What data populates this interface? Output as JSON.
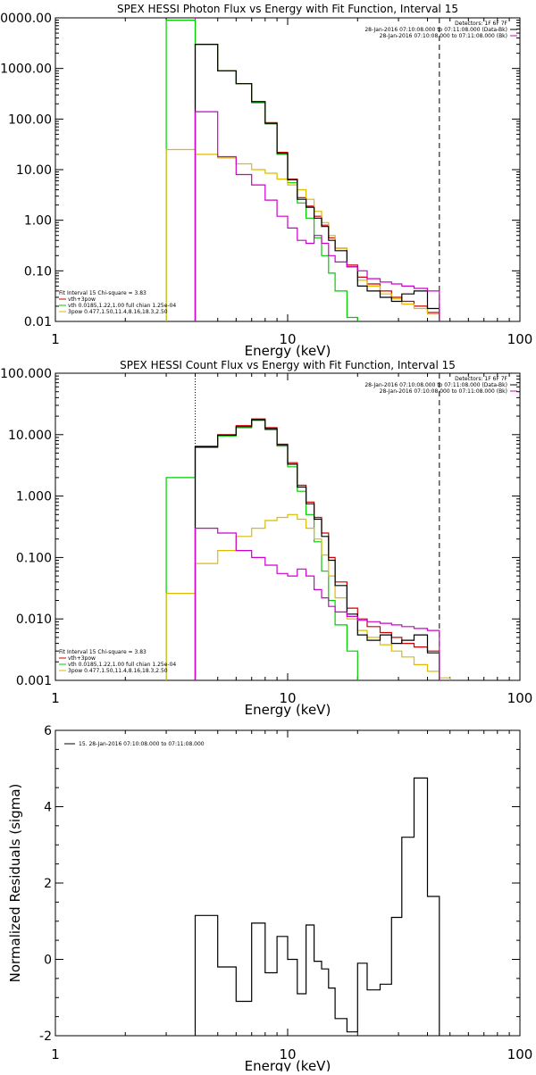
{
  "chart_data": [
    {
      "type": "line",
      "title": "SPEX HESSI Photon Flux vs Energy with Fit Function, Interval 15",
      "xlabel": "Energy (keV)",
      "ylabel": "",
      "xscale": "log",
      "yscale": "log",
      "xlim": [
        1,
        100
      ],
      "ylim": [
        0.01,
        10000
      ],
      "xticks": [
        {
          "v": 1,
          "label": "1"
        },
        {
          "v": 10,
          "label": "10"
        },
        {
          "v": 100,
          "label": "100"
        }
      ],
      "yticks": [
        {
          "v": 0.01,
          "label": "0.01"
        },
        {
          "v": 0.1,
          "label": "0.10"
        },
        {
          "v": 1,
          "label": "1.00"
        },
        {
          "v": 10,
          "label": "10.00"
        },
        {
          "v": 100,
          "label": "100.00"
        },
        {
          "v": 1000,
          "label": "1000.00"
        },
        {
          "v": 10000,
          "label": "10000.00"
        }
      ],
      "info_lines": [
        "Detectors: 1F 6F 7F",
        "28-Jan-2016 07:10:08.000 to 07:11:08.000 (Data-Bk)",
        "28-Jan-2016 07:10:08.000 to 07:11:08.000 (Bk)"
      ],
      "fit_lines": [
        {
          "text": "Fit Interval 15   Chi-square = 3.83",
          "color": "#000000"
        },
        {
          "text": "vth+3pow",
          "color": "#cc0000"
        },
        {
          "text": "vth 0.0185,1.22,1.00  full chian 1.25e-04",
          "color": "#00cc00"
        },
        {
          "text": "3pow 0.477,1.50,11.4,8.16,18.3,2.50",
          "color": "#ddbb00"
        }
      ],
      "vlines": [
        {
          "x": 4.0,
          "style": "solid",
          "color": "#cc00cc"
        },
        {
          "x": 45,
          "style": "dashed",
          "color": "#000000"
        }
      ],
      "edges": [
        3,
        4,
        5,
        6,
        7,
        8,
        9,
        10,
        11,
        12,
        13,
        14,
        15,
        16,
        18,
        20,
        22,
        25,
        28,
        31,
        35,
        40,
        45,
        50
      ],
      "series": [
        {
          "name": "vth+3pow",
          "color": "#cc0000",
          "values": [
            null,
            3000,
            900,
            500,
            220,
            85,
            22,
            6.5,
            2.8,
            1.9,
            1.2,
            0.8,
            0.45,
            0.28,
            0.13,
            0.075,
            0.055,
            0.04,
            0.03,
            0.025,
            0.02,
            0.015,
            null
          ]
        },
        {
          "color": "#00cc00",
          "values": [
            9000,
            3000,
            900,
            500,
            210,
            80,
            20,
            5.5,
            2.2,
            1.1,
            0.45,
            0.2,
            0.09,
            0.04,
            0.012,
            null,
            null,
            null,
            null,
            null,
            null,
            null,
            null
          ]
        },
        {
          "color": "#ddbb00",
          "values": [
            25,
            20,
            17,
            13,
            10,
            8.5,
            6.5,
            5,
            4,
            2.6,
            1.5,
            0.9,
            0.5,
            0.28,
            0.12,
            0.065,
            0.05,
            0.035,
            0.028,
            0.022,
            0.018,
            0.014,
            null
          ]
        },
        {
          "color": "#000000",
          "values": [
            null,
            3000,
            900,
            500,
            220,
            82,
            21,
            6.3,
            2.6,
            1.8,
            1.1,
            0.75,
            0.4,
            0.25,
            0.12,
            0.05,
            0.04,
            0.03,
            0.025,
            0.035,
            0.04,
            0.018,
            null
          ]
        },
        {
          "color": "#cc00cc",
          "values": [
            null,
            140,
            18,
            8,
            5,
            2.5,
            1.2,
            0.7,
            0.4,
            0.35,
            0.5,
            0.35,
            0.2,
            0.15,
            0.12,
            0.1,
            0.07,
            0.06,
            0.055,
            0.05,
            0.045,
            0.04,
            null
          ]
        }
      ]
    },
    {
      "type": "line",
      "title": "SPEX HESSI Count Flux vs Energy with Fit Function, Interval 15",
      "xlabel": "Energy (keV)",
      "ylabel": "",
      "xscale": "log",
      "yscale": "log",
      "xlim": [
        1,
        100
      ],
      "ylim": [
        0.001,
        100
      ],
      "xticks": [
        {
          "v": 1,
          "label": "1"
        },
        {
          "v": 10,
          "label": "10"
        },
        {
          "v": 100,
          "label": "100"
        }
      ],
      "yticks": [
        {
          "v": 0.001,
          "label": "0.001"
        },
        {
          "v": 0.01,
          "label": "0.010"
        },
        {
          "v": 0.1,
          "label": "0.100"
        },
        {
          "v": 1,
          "label": "1.000"
        },
        {
          "v": 10,
          "label": "10.000"
        },
        {
          "v": 100,
          "label": "100.000"
        }
      ],
      "info_lines": [
        "Detectors: 1F 6F 7F",
        "28-Jan-2016 07:10:08.000 to 07:11:08.000 (Data-Bk)",
        "28-Jan-2016 07:10:08.000 to 07:11:08.000 (Bk)"
      ],
      "fit_lines": [
        {
          "text": "Fit Interval 15   Chi-square = 3.83",
          "color": "#000000"
        },
        {
          "text": "vth+3pow",
          "color": "#cc0000"
        },
        {
          "text": "vth 0.0185,1.22,1.00  full chian 1.25e-04",
          "color": "#00cc00"
        },
        {
          "text": "3pow 0.477,1.50,11.4,8.16,18.3,2.50",
          "color": "#ddbb00"
        }
      ],
      "vlines": [
        {
          "x": 4.0,
          "style": "dotted",
          "color": "#000000"
        },
        {
          "x": 45,
          "style": "dashed",
          "color": "#000000"
        }
      ],
      "edges": [
        3,
        4,
        5,
        6,
        7,
        8,
        9,
        10,
        11,
        12,
        13,
        14,
        15,
        16,
        18,
        20,
        22,
        25,
        28,
        31,
        35,
        40,
        45,
        50,
        55
      ],
      "series": [
        {
          "name": "vth+3pow",
          "color": "#cc0000",
          "values": [
            null,
            6.5,
            10,
            14,
            18,
            13,
            7,
            3.5,
            1.5,
            0.8,
            0.45,
            0.25,
            0.1,
            0.04,
            0.015,
            0.01,
            0.0075,
            0.006,
            0.005,
            0.004,
            0.0035,
            0.003,
            null,
            null
          ]
        },
        {
          "color": "#00cc00",
          "values": [
            2.0,
            6.2,
            9.5,
            13,
            17,
            12,
            6.5,
            3.0,
            1.2,
            0.5,
            0.18,
            0.06,
            0.02,
            0.008,
            0.003,
            null,
            null,
            null,
            null,
            null,
            null,
            null,
            null,
            null
          ]
        },
        {
          "color": "#ddbb00",
          "values": [
            0.026,
            0.08,
            0.13,
            0.22,
            0.3,
            0.4,
            0.45,
            0.5,
            0.42,
            0.3,
            0.2,
            0.11,
            0.05,
            0.022,
            0.01,
            0.0065,
            0.005,
            0.0038,
            0.003,
            0.0024,
            0.0018,
            0.0014,
            0.0011,
            null
          ]
        },
        {
          "color": "#000000",
          "values": [
            null,
            6.3,
            9.8,
            13.5,
            17.5,
            12.5,
            6.8,
            3.3,
            1.4,
            0.75,
            0.42,
            0.22,
            0.09,
            0.035,
            0.012,
            0.0055,
            0.0045,
            0.0055,
            0.004,
            0.0045,
            0.0055,
            0.0028,
            null,
            null
          ]
        },
        {
          "color": "#cc00cc",
          "values": [
            null,
            0.3,
            0.25,
            0.13,
            0.1,
            0.075,
            0.055,
            0.05,
            0.065,
            0.05,
            0.03,
            0.022,
            0.016,
            0.013,
            0.011,
            0.0095,
            0.009,
            0.0085,
            0.008,
            0.0075,
            0.007,
            0.0065,
            null,
            null
          ]
        }
      ]
    },
    {
      "type": "line",
      "title": "",
      "xlabel": "Energy (keV)",
      "ylabel": "Normalized Residuals (sigma)",
      "xscale": "log",
      "yscale": "linear",
      "xlim": [
        1,
        100
      ],
      "ylim": [
        -2,
        6
      ],
      "xticks": [
        {
          "v": 1,
          "label": "1"
        },
        {
          "v": 10,
          "label": "10"
        },
        {
          "v": 100,
          "label": "100"
        }
      ],
      "yticks": [
        {
          "v": -2,
          "label": "-2"
        },
        {
          "v": 0,
          "label": "0"
        },
        {
          "v": 2,
          "label": "2"
        },
        {
          "v": 4,
          "label": "4"
        },
        {
          "v": 6,
          "label": "6"
        }
      ],
      "legend": [
        {
          "text": "15. 28-Jan-2016 07:10:08.000 to 07:11:08.000",
          "color": "#000000"
        }
      ],
      "edges": [
        4,
        5,
        6,
        7,
        8,
        9,
        10,
        11,
        12,
        13,
        14,
        15,
        16,
        18,
        20,
        22,
        25,
        28,
        31,
        35,
        40,
        45
      ],
      "series": [
        {
          "color": "#000000",
          "values": [
            1.15,
            -0.2,
            -1.1,
            0.95,
            -0.35,
            0.6,
            0.0,
            -0.9,
            0.9,
            -0.05,
            -0.25,
            -0.75,
            -1.55,
            -1.9,
            -0.1,
            -0.8,
            -0.65,
            1.1,
            3.2,
            4.75,
            1.65
          ]
        }
      ]
    }
  ]
}
